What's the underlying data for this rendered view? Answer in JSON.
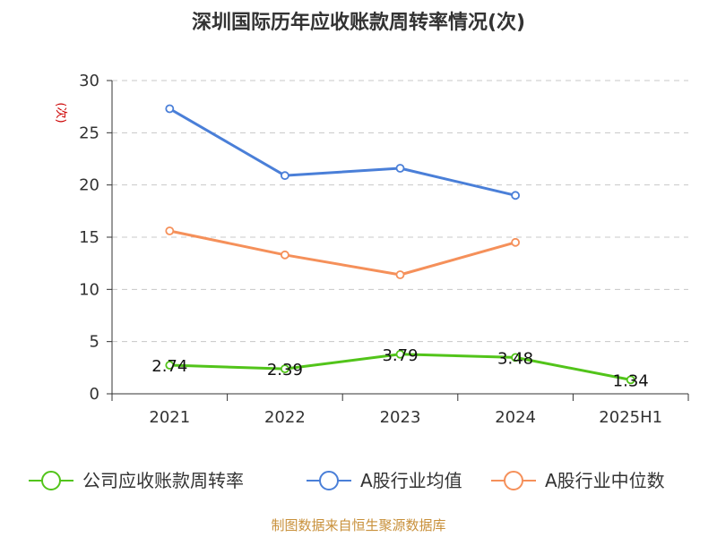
{
  "chart_data": {
    "type": "line",
    "title": "深圳国际历年应收账款周转率情况(次)",
    "ylabel": "(次)",
    "xlabel": "",
    "categories": [
      "2021",
      "2022",
      "2023",
      "2024",
      "2025H1"
    ],
    "ylim": [
      0,
      30
    ],
    "yticks": [
      0,
      5,
      10,
      15,
      20,
      25,
      30
    ],
    "grid": true,
    "legend_position": "bottom",
    "series": [
      {
        "name": "公司应收账款周转率",
        "values": [
          2.74,
          2.39,
          3.79,
          3.48,
          1.34
        ],
        "labels": [
          "2.74",
          "2.39",
          "3.79",
          "3.48",
          "1.34"
        ],
        "color": "#52c41a"
      },
      {
        "name": "A股行业均值",
        "values": [
          27.3,
          20.9,
          21.6,
          19.0,
          null
        ],
        "color": "#4a7fd8"
      },
      {
        "name": "A股行业中位数",
        "values": [
          15.6,
          13.3,
          11.4,
          14.5,
          null
        ],
        "color": "#f5905a"
      }
    ],
    "source": "制图数据来自恒生聚源数据库"
  }
}
